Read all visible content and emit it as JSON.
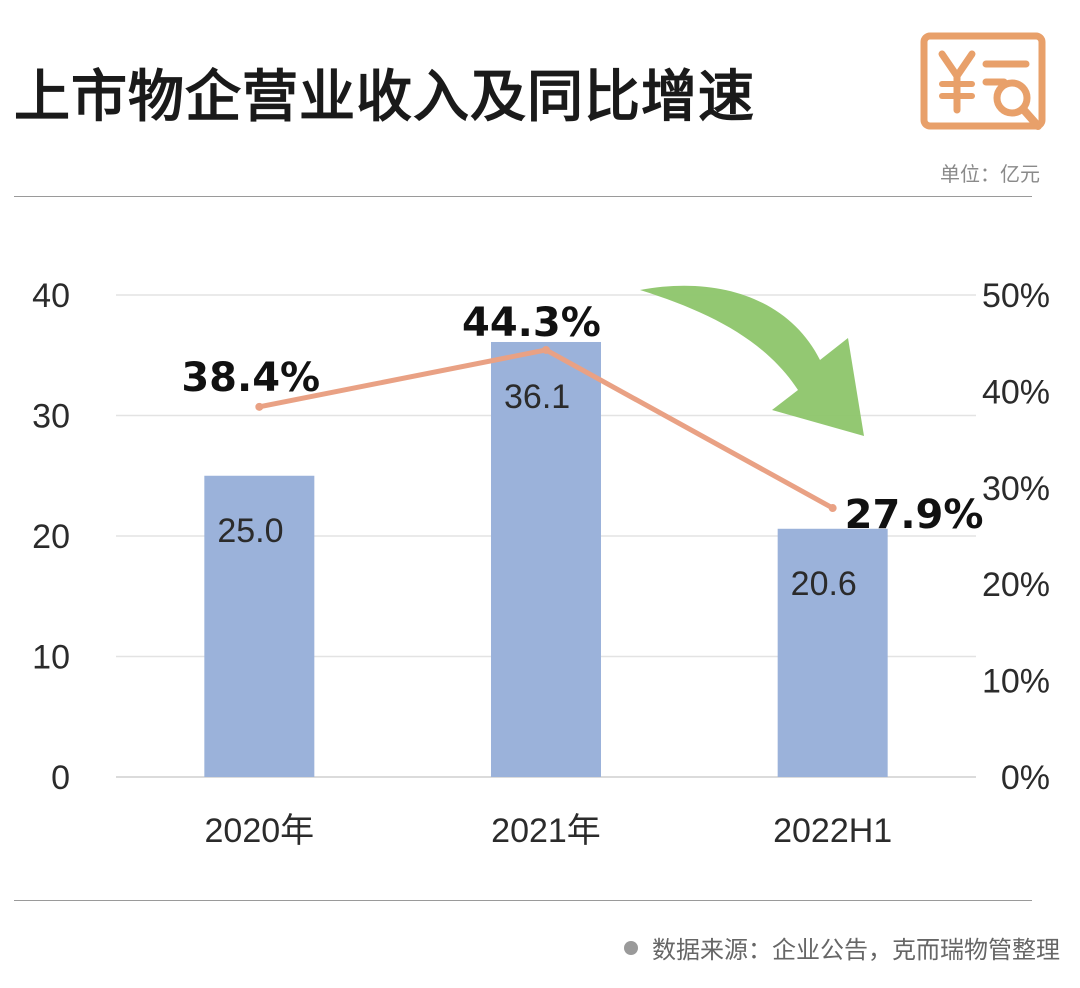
{
  "title": "上市物企营业收入及同比增速",
  "unit": "单位：亿元",
  "source": "数据来源：企业公告，克而瑞物管整理",
  "colors": {
    "bar": "#9bb2da",
    "line": "#e9a184",
    "arrow": "#8dc56a",
    "logo": "#e8a06a"
  },
  "logo_icon": "yuan-document-search-icon",
  "arrow_icon": "down-trend-arrow-icon",
  "chart_data": {
    "type": "bar",
    "categories": [
      "2020年",
      "2021年",
      "2022H1"
    ],
    "series": [
      {
        "type": "bar",
        "axis": "left",
        "values": [
          25.0,
          36.1,
          20.6
        ],
        "labels": [
          "25.0",
          "36.1",
          "20.6"
        ]
      },
      {
        "type": "line",
        "axis": "right",
        "values": [
          38.4,
          44.3,
          27.9
        ],
        "labels": [
          "38.4%",
          "44.3%",
          "27.9%"
        ]
      }
    ],
    "ylim": [
      0,
      40
    ],
    "yticks": [
      "0",
      "10",
      "20",
      "30",
      "40"
    ],
    "y2lim": [
      0,
      50
    ],
    "y2ticks": [
      "0%",
      "10%",
      "20%",
      "30%",
      "40%",
      "50%"
    ],
    "grid": true
  }
}
